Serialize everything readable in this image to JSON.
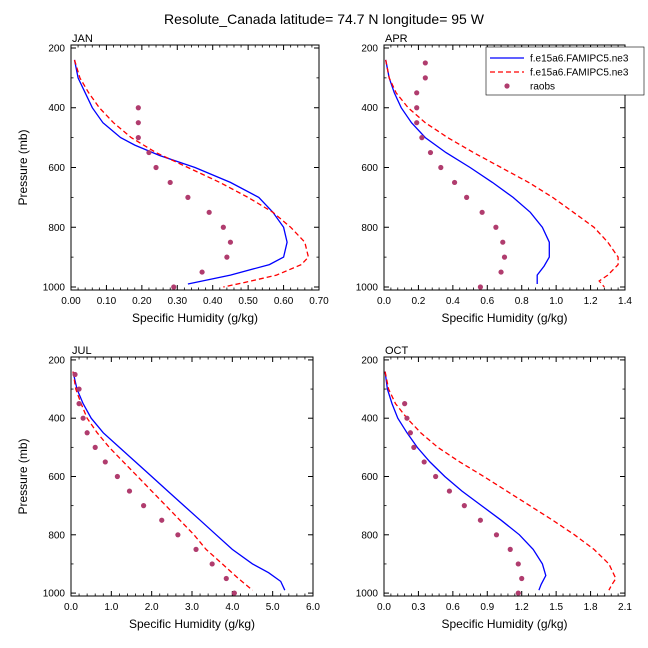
{
  "title": "Resolute_Canada  latitude= 74.7 N longitude= 95 W",
  "colors": {
    "model1": "#0000ff",
    "model2": "#ff0000",
    "raobs": "#b03c6e"
  },
  "legend": {
    "entries": [
      {
        "label": "f.e15a6.FAMIPC5.ne3",
        "style": "solid",
        "color": "#0000ff"
      },
      {
        "label": "f.e15a6.FAMIPC5.ne3",
        "style": "dashed",
        "color": "#ff0000"
      },
      {
        "label": "raobs",
        "style": "marker",
        "color": "#b03c6e"
      }
    ],
    "location": "top-right of APR panel"
  },
  "chart_data": [
    {
      "type": "line",
      "panel": "JAN",
      "xlabel": "Specific Humidity (g/kg)",
      "ylabel": "Pressure (mb)",
      "xlim": [
        0,
        0.7
      ],
      "ylim": [
        1000,
        200
      ],
      "xticks": [
        "0.00",
        "0.10",
        "0.20",
        "0.30",
        "0.40",
        "0.50",
        "0.60",
        "0.70"
      ],
      "yticks": [
        "200",
        "400",
        "600",
        "800",
        "1000"
      ],
      "series": [
        {
          "name": "f.e15a6.FAMIPC5.ne3",
          "style": "solid",
          "color": "#0000ff",
          "points": [
            [
              0.01,
              240
            ],
            [
              0.02,
              300
            ],
            [
              0.04,
              350
            ],
            [
              0.06,
              400
            ],
            [
              0.09,
              450
            ],
            [
              0.14,
              500
            ],
            [
              0.18,
              525
            ],
            [
              0.25,
              560
            ],
            [
              0.35,
              600
            ],
            [
              0.45,
              650
            ],
            [
              0.53,
              700
            ],
            [
              0.57,
              750
            ],
            [
              0.6,
              800
            ],
            [
              0.61,
              850
            ],
            [
              0.6,
              900
            ],
            [
              0.56,
              925
            ],
            [
              0.45,
              960
            ],
            [
              0.33,
              990
            ]
          ]
        },
        {
          "name": "f.e15a6.FAMIPC5.ne3",
          "style": "dashed",
          "color": "#ff0000",
          "points": [
            [
              0.01,
              240
            ],
            [
              0.025,
              300
            ],
            [
              0.05,
              350
            ],
            [
              0.08,
              400
            ],
            [
              0.12,
              450
            ],
            [
              0.17,
              500
            ],
            [
              0.24,
              550
            ],
            [
              0.33,
              600
            ],
            [
              0.42,
              650
            ],
            [
              0.5,
              700
            ],
            [
              0.57,
              750
            ],
            [
              0.62,
              800
            ],
            [
              0.66,
              850
            ],
            [
              0.67,
              900
            ],
            [
              0.65,
              925
            ],
            [
              0.58,
              960
            ],
            [
              0.49,
              985
            ],
            [
              0.43,
              1000
            ]
          ]
        },
        {
          "name": "raobs",
          "style": "marker",
          "color": "#b03c6e",
          "points": [
            [
              0.19,
              400
            ],
            [
              0.19,
              450
            ],
            [
              0.19,
              500
            ],
            [
              0.22,
              550
            ],
            [
              0.24,
              600
            ],
            [
              0.28,
              650
            ],
            [
              0.33,
              700
            ],
            [
              0.39,
              750
            ],
            [
              0.43,
              800
            ],
            [
              0.45,
              850
            ],
            [
              0.44,
              900
            ],
            [
              0.37,
              950
            ],
            [
              0.29,
              1000
            ]
          ]
        }
      ]
    },
    {
      "type": "line",
      "panel": "APR",
      "xlabel": "Specific Humidity (g/kg)",
      "ylabel": "",
      "xlim": [
        0,
        1.4
      ],
      "ylim": [
        1000,
        200
      ],
      "xticks": [
        "0.0",
        "0.2",
        "0.4",
        "0.6",
        "0.8",
        "1.0",
        "1.2",
        "1.4"
      ],
      "yticks": [
        "200",
        "400",
        "600",
        "800",
        "1000"
      ],
      "series": [
        {
          "name": "f.e15a6.FAMIPC5.ne3",
          "style": "solid",
          "color": "#0000ff",
          "points": [
            [
              0.01,
              240
            ],
            [
              0.03,
              300
            ],
            [
              0.06,
              350
            ],
            [
              0.1,
              400
            ],
            [
              0.16,
              450
            ],
            [
              0.24,
              500
            ],
            [
              0.36,
              550
            ],
            [
              0.5,
              600
            ],
            [
              0.63,
              650
            ],
            [
              0.75,
              700
            ],
            [
              0.85,
              750
            ],
            [
              0.92,
              800
            ],
            [
              0.96,
              850
            ],
            [
              0.96,
              900
            ],
            [
              0.93,
              930
            ],
            [
              0.89,
              960
            ],
            [
              0.89,
              990
            ]
          ]
        },
        {
          "name": "f.e15a6.FAMIPC5.ne3",
          "style": "dashed",
          "color": "#ff0000",
          "points": [
            [
              0.01,
              240
            ],
            [
              0.03,
              300
            ],
            [
              0.07,
              350
            ],
            [
              0.14,
              400
            ],
            [
              0.24,
              450
            ],
            [
              0.37,
              500
            ],
            [
              0.52,
              550
            ],
            [
              0.68,
              600
            ],
            [
              0.84,
              650
            ],
            [
              0.98,
              700
            ],
            [
              1.1,
              750
            ],
            [
              1.22,
              800
            ],
            [
              1.3,
              850
            ],
            [
              1.36,
              900
            ],
            [
              1.36,
              925
            ],
            [
              1.3,
              960
            ],
            [
              1.25,
              980
            ],
            [
              1.28,
              1000
            ]
          ]
        },
        {
          "name": "raobs",
          "style": "marker",
          "color": "#b03c6e",
          "points": [
            [
              0.24,
              250
            ],
            [
              0.24,
              300
            ],
            [
              0.19,
              350
            ],
            [
              0.19,
              400
            ],
            [
              0.19,
              450
            ],
            [
              0.22,
              500
            ],
            [
              0.27,
              550
            ],
            [
              0.33,
              600
            ],
            [
              0.41,
              650
            ],
            [
              0.48,
              700
            ],
            [
              0.57,
              750
            ],
            [
              0.65,
              800
            ],
            [
              0.69,
              850
            ],
            [
              0.7,
              900
            ],
            [
              0.68,
              950
            ],
            [
              0.56,
              1000
            ]
          ]
        }
      ]
    },
    {
      "type": "line",
      "panel": "JUL",
      "xlabel": "Specific Humidity (g/kg)",
      "ylabel": "Pressure (mb)",
      "xlim": [
        0,
        6
      ],
      "ylim": [
        1000,
        200
      ],
      "xticks": [
        "0.0",
        "1.0",
        "2.0",
        "3.0",
        "4.0",
        "5.0",
        "6.0"
      ],
      "yticks": [
        "200",
        "400",
        "600",
        "800",
        "1000"
      ],
      "series": [
        {
          "name": "f.e15a6.FAMIPC5.ne3",
          "style": "solid",
          "color": "#0000ff",
          "points": [
            [
              0.05,
              240
            ],
            [
              0.15,
              300
            ],
            [
              0.3,
              350
            ],
            [
              0.5,
              400
            ],
            [
              0.8,
              450
            ],
            [
              1.2,
              500
            ],
            [
              1.6,
              550
            ],
            [
              2.0,
              600
            ],
            [
              2.4,
              650
            ],
            [
              2.8,
              700
            ],
            [
              3.2,
              750
            ],
            [
              3.6,
              800
            ],
            [
              4.0,
              850
            ],
            [
              4.5,
              900
            ],
            [
              4.9,
              930
            ],
            [
              5.2,
              960
            ],
            [
              5.3,
              990
            ]
          ]
        },
        {
          "name": "f.e15a6.FAMIPC5.ne3",
          "style": "dashed",
          "color": "#ff0000",
          "points": [
            [
              0.05,
              240
            ],
            [
              0.12,
              300
            ],
            [
              0.25,
              350
            ],
            [
              0.4,
              400
            ],
            [
              0.65,
              450
            ],
            [
              0.95,
              500
            ],
            [
              1.3,
              550
            ],
            [
              1.65,
              600
            ],
            [
              2.0,
              650
            ],
            [
              2.35,
              700
            ],
            [
              2.7,
              750
            ],
            [
              3.05,
              800
            ],
            [
              3.35,
              850
            ],
            [
              3.75,
              900
            ],
            [
              4.15,
              950
            ],
            [
              4.5,
              990
            ]
          ]
        },
        {
          "name": "raobs",
          "style": "marker",
          "color": "#b03c6e",
          "points": [
            [
              0.1,
              250
            ],
            [
              0.2,
              300
            ],
            [
              0.2,
              350
            ],
            [
              0.3,
              400
            ],
            [
              0.4,
              450
            ],
            [
              0.6,
              500
            ],
            [
              0.85,
              550
            ],
            [
              1.15,
              600
            ],
            [
              1.45,
              650
            ],
            [
              1.8,
              700
            ],
            [
              2.25,
              750
            ],
            [
              2.65,
              800
            ],
            [
              3.1,
              850
            ],
            [
              3.5,
              900
            ],
            [
              3.85,
              950
            ],
            [
              4.05,
              1000
            ]
          ]
        }
      ]
    },
    {
      "type": "line",
      "panel": "OCT",
      "xlabel": "Specific Humidity (g/kg)",
      "ylabel": "",
      "xlim": [
        0,
        2.1
      ],
      "ylim": [
        1000,
        200
      ],
      "xticks": [
        "0.0",
        "0.3",
        "0.6",
        "0.9",
        "1.2",
        "1.5",
        "1.8",
        "2.1"
      ],
      "yticks": [
        "200",
        "400",
        "600",
        "800",
        "1000"
      ],
      "series": [
        {
          "name": "f.e15a6.FAMIPC5.ne3",
          "style": "solid",
          "color": "#0000ff",
          "points": [
            [
              0.01,
              240
            ],
            [
              0.03,
              300
            ],
            [
              0.07,
              350
            ],
            [
              0.12,
              400
            ],
            [
              0.2,
              450
            ],
            [
              0.29,
              500
            ],
            [
              0.4,
              550
            ],
            [
              0.53,
              600
            ],
            [
              0.68,
              650
            ],
            [
              0.85,
              700
            ],
            [
              1.02,
              750
            ],
            [
              1.18,
              800
            ],
            [
              1.3,
              850
            ],
            [
              1.38,
              900
            ],
            [
              1.41,
              940
            ],
            [
              1.37,
              970
            ],
            [
              1.35,
              990
            ]
          ]
        },
        {
          "name": "f.e15a6.FAMIPC5.ne3",
          "style": "dashed",
          "color": "#ff0000",
          "points": [
            [
              0.01,
              240
            ],
            [
              0.04,
              300
            ],
            [
              0.1,
              350
            ],
            [
              0.2,
              400
            ],
            [
              0.32,
              450
            ],
            [
              0.47,
              500
            ],
            [
              0.66,
              550
            ],
            [
              0.87,
              600
            ],
            [
              1.07,
              650
            ],
            [
              1.27,
              700
            ],
            [
              1.47,
              750
            ],
            [
              1.66,
              800
            ],
            [
              1.83,
              850
            ],
            [
              1.96,
              900
            ],
            [
              2.02,
              950
            ],
            [
              1.98,
              975
            ],
            [
              1.96,
              990
            ]
          ]
        },
        {
          "name": "raobs",
          "style": "marker",
          "color": "#b03c6e",
          "points": [
            [
              0.18,
              350
            ],
            [
              0.2,
              400
            ],
            [
              0.23,
              450
            ],
            [
              0.26,
              500
            ],
            [
              0.35,
              550
            ],
            [
              0.45,
              600
            ],
            [
              0.57,
              650
            ],
            [
              0.7,
              700
            ],
            [
              0.84,
              750
            ],
            [
              0.98,
              800
            ],
            [
              1.1,
              850
            ],
            [
              1.17,
              900
            ],
            [
              1.2,
              950
            ],
            [
              1.17,
              1000
            ]
          ]
        }
      ]
    }
  ]
}
